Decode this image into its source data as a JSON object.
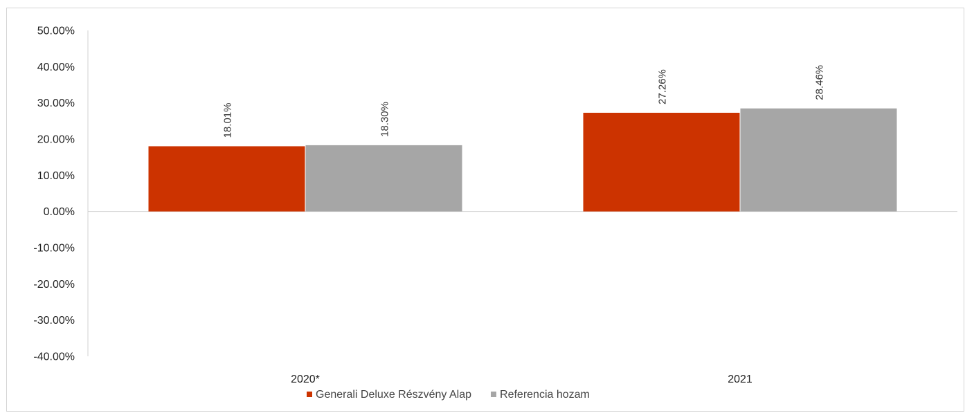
{
  "chart_data": {
    "type": "bar",
    "title": "",
    "xlabel": "",
    "ylabel": "",
    "categories": [
      "2020*",
      "2021"
    ],
    "series": [
      {
        "name": "Generali Deluxe Részvény Alap",
        "values": [
          18.01,
          27.26
        ],
        "labels": [
          "18.01%",
          "27.26%"
        ],
        "color": "#cc3300"
      },
      {
        "name": "Referencia hozam",
        "values": [
          18.3,
          28.46
        ],
        "labels": [
          "18.30%",
          "28.46%"
        ],
        "color": "#a6a6a6"
      }
    ],
    "ylim": [
      -40,
      50
    ],
    "yticks": [
      50,
      40,
      30,
      20,
      10,
      0,
      -10,
      -20,
      -30,
      -40
    ],
    "ytick_labels": [
      "50.00%",
      "40.00%",
      "30.00%",
      "20.00%",
      "10.00%",
      "0.00%",
      "-10.00%",
      "-20.00%",
      "-30.00%",
      "-40.00%"
    ],
    "grid": false,
    "legend_position": "bottom"
  }
}
